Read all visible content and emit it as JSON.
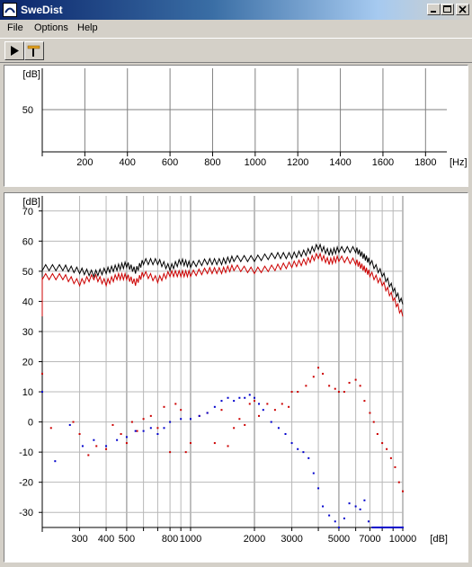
{
  "window": {
    "title": "SweDist"
  },
  "menu": [
    "File",
    "Options",
    "Help"
  ],
  "icons": {
    "play": "play-icon",
    "probe": "probe-icon",
    "app": "swedist-app-icon"
  },
  "colors": {
    "black_series": "#000000",
    "red_series": "#cc0000",
    "blue_series": "#0000cc"
  },
  "top_chart": {
    "ylabel": "[dB]",
    "xunit": "[Hz]",
    "y_ticks": [
      "50"
    ],
    "x_ticks": [
      "200",
      "400",
      "600",
      "800",
      "1000",
      "1200",
      "1400",
      "1600",
      "1800"
    ]
  },
  "bottom_chart": {
    "ylabel": "[dB]",
    "xunit": "[dB]",
    "y_ticks": [
      "70",
      "60",
      "50",
      "40",
      "30",
      "20",
      "10",
      "0",
      "-10",
      "-20",
      "-30"
    ],
    "x_ticks": [
      "300",
      "400",
      "500",
      "800",
      "1000",
      "2000",
      "3000",
      "5000",
      "7000",
      "10000"
    ]
  },
  "chart_data": [
    {
      "type": "line",
      "title": "",
      "ylabel": "[dB]",
      "xlabel": "[Hz]",
      "xlim": [
        0,
        1900
      ],
      "x_ticks": [
        200,
        400,
        600,
        800,
        1000,
        1200,
        1400,
        1600,
        1800
      ],
      "y_ticks": [
        50
      ],
      "grid": true,
      "series": []
    },
    {
      "type": "line",
      "title": "",
      "ylabel": "[dB]",
      "xlabel": "[dB]",
      "x_scale": "log",
      "xlim": [
        200,
        10000
      ],
      "ylim": [
        -35,
        75
      ],
      "y_ticks": [
        70,
        60,
        50,
        40,
        30,
        20,
        10,
        0,
        -10,
        -20,
        -30
      ],
      "x_ticks": [
        300,
        400,
        500,
        800,
        1000,
        2000,
        3000,
        5000,
        7000,
        10000
      ],
      "grid": true,
      "series": [
        {
          "color": "#000000",
          "style": "line",
          "points": [
            [
              200,
              51
            ],
            [
              250,
              51
            ],
            [
              300,
              50
            ],
            [
              350,
              49
            ],
            [
              400,
              50
            ],
            [
              450,
              51
            ],
            [
              500,
              52
            ],
            [
              550,
              50
            ],
            [
              600,
              53
            ],
            [
              700,
              53
            ],
            [
              800,
              51
            ],
            [
              900,
              53
            ],
            [
              1000,
              52
            ],
            [
              1200,
              53
            ],
            [
              1400,
              53
            ],
            [
              1600,
              54
            ],
            [
              2000,
              54
            ],
            [
              2500,
              55
            ],
            [
              3000,
              55
            ],
            [
              3500,
              56
            ],
            [
              4000,
              58
            ],
            [
              4500,
              56
            ],
            [
              5000,
              57
            ],
            [
              6000,
              57
            ],
            [
              6500,
              55
            ],
            [
              7000,
              53
            ],
            [
              8000,
              49
            ],
            [
              9000,
              44
            ],
            [
              10000,
              39
            ]
          ]
        },
        {
          "color": "#cc0000",
          "style": "line",
          "points": [
            [
              200,
              48
            ],
            [
              250,
              48
            ],
            [
              300,
              46
            ],
            [
              350,
              48
            ],
            [
              400,
              46
            ],
            [
              450,
              48
            ],
            [
              500,
              48
            ],
            [
              550,
              46
            ],
            [
              600,
              49
            ],
            [
              700,
              47
            ],
            [
              800,
              49
            ],
            [
              900,
              49
            ],
            [
              1000,
              49
            ],
            [
              1200,
              50
            ],
            [
              1400,
              50
            ],
            [
              1600,
              51
            ],
            [
              2000,
              50
            ],
            [
              2500,
              51
            ],
            [
              3000,
              52
            ],
            [
              3500,
              53
            ],
            [
              4000,
              55
            ],
            [
              4500,
              53
            ],
            [
              5000,
              54
            ],
            [
              6000,
              53
            ],
            [
              6500,
              51
            ],
            [
              7000,
              49
            ],
            [
              8000,
              46
            ],
            [
              9000,
              41
            ],
            [
              10000,
              35
            ]
          ]
        },
        {
          "color": "#cc0000",
          "style": "scatter",
          "points": [
            [
              200,
              16
            ],
            [
              220,
              -2
            ],
            [
              280,
              0
            ],
            [
              300,
              -4
            ],
            [
              330,
              -11
            ],
            [
              360,
              -8
            ],
            [
              400,
              -9
            ],
            [
              430,
              -1
            ],
            [
              470,
              -4
            ],
            [
              500,
              -7
            ],
            [
              530,
              0
            ],
            [
              560,
              -3
            ],
            [
              600,
              1
            ],
            [
              650,
              2
            ],
            [
              700,
              -2
            ],
            [
              750,
              5
            ],
            [
              800,
              -10
            ],
            [
              850,
              6
            ],
            [
              900,
              4
            ],
            [
              950,
              -10
            ],
            [
              1000,
              -7
            ],
            [
              1100,
              2
            ],
            [
              1200,
              3
            ],
            [
              1300,
              -7
            ],
            [
              1400,
              4
            ],
            [
              1500,
              -8
            ],
            [
              1600,
              -2
            ],
            [
              1700,
              1
            ],
            [
              1800,
              -1
            ],
            [
              1900,
              6
            ],
            [
              2000,
              7
            ],
            [
              2100,
              2
            ],
            [
              2300,
              6
            ],
            [
              2500,
              4
            ],
            [
              2700,
              6
            ],
            [
              2900,
              5
            ],
            [
              3000,
              10
            ],
            [
              3200,
              10
            ],
            [
              3500,
              12
            ],
            [
              3800,
              15
            ],
            [
              4000,
              18
            ],
            [
              4200,
              16
            ],
            [
              4500,
              12
            ],
            [
              4800,
              11
            ],
            [
              5000,
              10
            ],
            [
              5300,
              10
            ],
            [
              5600,
              13
            ],
            [
              6000,
              14
            ],
            [
              6300,
              12
            ],
            [
              6600,
              7
            ],
            [
              7000,
              3
            ],
            [
              7300,
              0
            ],
            [
              7600,
              -4
            ],
            [
              8000,
              -7
            ],
            [
              8400,
              -9
            ],
            [
              8800,
              -12
            ],
            [
              9200,
              -15
            ],
            [
              9600,
              -20
            ],
            [
              10000,
              -23
            ]
          ]
        },
        {
          "color": "#0000cc",
          "style": "scatter",
          "points": [
            [
              200,
              10
            ],
            [
              230,
              -13
            ],
            [
              270,
              -1
            ],
            [
              310,
              -8
            ],
            [
              350,
              -6
            ],
            [
              400,
              -8
            ],
            [
              450,
              -6
            ],
            [
              500,
              -5
            ],
            [
              550,
              -3
            ],
            [
              600,
              -3
            ],
            [
              650,
              -2
            ],
            [
              700,
              -4
            ],
            [
              750,
              -2
            ],
            [
              800,
              0
            ],
            [
              900,
              1
            ],
            [
              1000,
              1
            ],
            [
              1100,
              2
            ],
            [
              1200,
              3
            ],
            [
              1300,
              5
            ],
            [
              1400,
              7
            ],
            [
              1500,
              8
            ],
            [
              1600,
              7
            ],
            [
              1700,
              8
            ],
            [
              1800,
              8
            ],
            [
              1900,
              9
            ],
            [
              2000,
              8
            ],
            [
              2100,
              6
            ],
            [
              2200,
              4
            ],
            [
              2400,
              0
            ],
            [
              2600,
              -2
            ],
            [
              2800,
              -4
            ],
            [
              3000,
              -7
            ],
            [
              3200,
              -9
            ],
            [
              3400,
              -10
            ],
            [
              3600,
              -12
            ],
            [
              3800,
              -17
            ],
            [
              4000,
              -22
            ],
            [
              4200,
              -28
            ],
            [
              4500,
              -31
            ],
            [
              4800,
              -33
            ],
            [
              5000,
              -35
            ],
            [
              5300,
              -32
            ],
            [
              5600,
              -27
            ],
            [
              6000,
              -28
            ],
            [
              6300,
              -29
            ],
            [
              6600,
              -26
            ],
            [
              6900,
              -33
            ],
            [
              7200,
              -35
            ],
            [
              8000,
              -35
            ],
            [
              9000,
              -35
            ],
            [
              10000,
              -35
            ]
          ]
        }
      ]
    }
  ]
}
